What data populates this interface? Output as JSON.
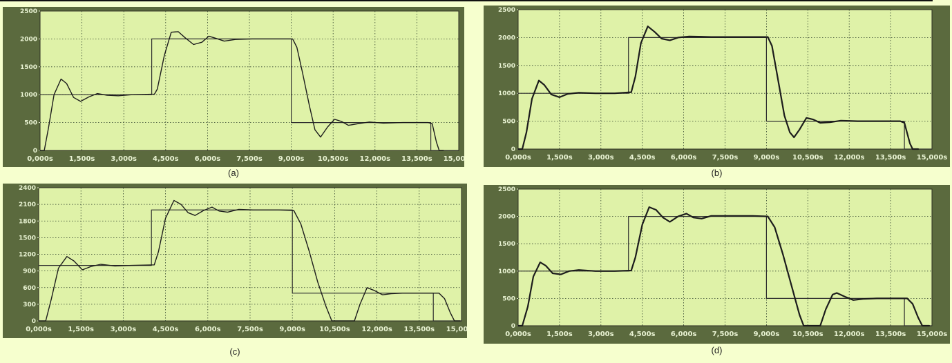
{
  "chart_data": [
    {
      "caption": "(a)",
      "type": "line",
      "ylim": [
        0,
        2500
      ],
      "yticks": [
        0,
        500,
        1000,
        1500,
        2000,
        2500
      ],
      "ytick_labels": [
        "0",
        "500",
        "1000",
        "1500",
        "2000",
        "2500"
      ],
      "xlim": [
        0,
        15
      ],
      "xticks": [
        0,
        1.5,
        3,
        4.5,
        6,
        7.5,
        9,
        10.5,
        12,
        13.5,
        15
      ],
      "xtick_labels": [
        "0,000s",
        "1,500s",
        "3,000s",
        "4,500s",
        "6,000s",
        "7,500s",
        "9,000s",
        "10,500s",
        "12,000s",
        "13,500s",
        "15,000s"
      ],
      "grid": true,
      "series": [
        {
          "points": [
            [
              0,
              1000
            ],
            [
              4,
              1000
            ],
            [
              4,
              2000
            ],
            [
              9,
              2000
            ],
            [
              9,
              500
            ],
            [
              14,
              500
            ],
            [
              14,
              0
            ],
            [
              15,
              0
            ]
          ]
        },
        {
          "points": [
            [
              0,
              0
            ],
            [
              0.15,
              0
            ],
            [
              0.3,
              400
            ],
            [
              0.5,
              1000
            ],
            [
              0.75,
              1280
            ],
            [
              0.95,
              1200
            ],
            [
              1.2,
              950
            ],
            [
              1.45,
              880
            ],
            [
              1.75,
              960
            ],
            [
              2.05,
              1020
            ],
            [
              2.4,
              990
            ],
            [
              2.8,
              980
            ],
            [
              3.3,
              1000
            ],
            [
              4.1,
              1010
            ],
            [
              4.2,
              1100
            ],
            [
              4.45,
              1700
            ],
            [
              4.7,
              2120
            ],
            [
              4.95,
              2130
            ],
            [
              5.2,
              2020
            ],
            [
              5.5,
              1900
            ],
            [
              5.8,
              1940
            ],
            [
              6.05,
              2050
            ],
            [
              6.3,
              2010
            ],
            [
              6.6,
              1960
            ],
            [
              7,
              1990
            ],
            [
              7.6,
              2000
            ],
            [
              8.5,
              2000
            ],
            [
              9.05,
              2000
            ],
            [
              9.2,
              1850
            ],
            [
              9.4,
              1400
            ],
            [
              9.65,
              800
            ],
            [
              9.85,
              370
            ],
            [
              10.05,
              240
            ],
            [
              10.3,
              420
            ],
            [
              10.55,
              560
            ],
            [
              10.8,
              520
            ],
            [
              11.05,
              450
            ],
            [
              11.4,
              480
            ],
            [
              11.8,
              510
            ],
            [
              12.3,
              490
            ],
            [
              13,
              500
            ],
            [
              13.9,
              500
            ],
            [
              14.05,
              480
            ],
            [
              14.2,
              150
            ],
            [
              14.3,
              0
            ],
            [
              14.45,
              0
            ]
          ]
        }
      ]
    },
    {
      "caption": "(b)",
      "type": "line",
      "ylim": [
        0,
        2500
      ],
      "yticks": [
        0,
        500,
        1000,
        1500,
        2000,
        2500
      ],
      "ytick_labels": [
        "0",
        "500",
        "1000",
        "1500",
        "2000",
        "2500"
      ],
      "xlim": [
        0,
        15
      ],
      "xticks": [
        0,
        1.5,
        3,
        4.5,
        6,
        7.5,
        9,
        10.5,
        12,
        13.5,
        15
      ],
      "xtick_labels": [
        "0,000s",
        "1,500s",
        "3,000s",
        "4,500s",
        "6,000s",
        "7,500s",
        "9,000s",
        "10,500s",
        "12,000s",
        "13,500s",
        "15,000s"
      ],
      "grid": true,
      "series": [
        {
          "points": [
            [
              0,
              1000
            ],
            [
              4,
              1000
            ],
            [
              4,
              2000
            ],
            [
              9,
              2000
            ],
            [
              9,
              500
            ],
            [
              14,
              500
            ],
            [
              14,
              0
            ],
            [
              15,
              0
            ]
          ]
        },
        {
          "points": [
            [
              0,
              0
            ],
            [
              0.15,
              0
            ],
            [
              0.3,
              300
            ],
            [
              0.5,
              900
            ],
            [
              0.75,
              1230
            ],
            [
              0.95,
              1150
            ],
            [
              1.2,
              980
            ],
            [
              1.5,
              930
            ],
            [
              1.8,
              990
            ],
            [
              2.2,
              1010
            ],
            [
              2.8,
              1000
            ],
            [
              3.5,
              1000
            ],
            [
              4.1,
              1020
            ],
            [
              4.25,
              1300
            ],
            [
              4.45,
              1900
            ],
            [
              4.7,
              2200
            ],
            [
              4.95,
              2100
            ],
            [
              5.2,
              1980
            ],
            [
              5.5,
              1950
            ],
            [
              5.8,
              2000
            ],
            [
              6.2,
              2020
            ],
            [
              7,
              2010
            ],
            [
              8,
              2010
            ],
            [
              9.05,
              2010
            ],
            [
              9.2,
              1850
            ],
            [
              9.4,
              1300
            ],
            [
              9.65,
              600
            ],
            [
              9.85,
              300
            ],
            [
              10,
              210
            ],
            [
              10.2,
              350
            ],
            [
              10.45,
              560
            ],
            [
              10.7,
              530
            ],
            [
              10.95,
              470
            ],
            [
              11.3,
              480
            ],
            [
              11.7,
              510
            ],
            [
              12.3,
              500
            ],
            [
              13,
              500
            ],
            [
              13.85,
              500
            ],
            [
              14,
              470
            ],
            [
              14.2,
              100
            ],
            [
              14.3,
              0
            ],
            [
              14.5,
              0
            ]
          ]
        }
      ]
    },
    {
      "caption": "(c)",
      "type": "line",
      "ylim": [
        0,
        2400
      ],
      "yticks": [
        0,
        300,
        600,
        900,
        1200,
        1500,
        1800,
        2100,
        2400
      ],
      "ytick_labels": [
        "0",
        "300",
        "600",
        "900",
        "1200",
        "1500",
        "1800",
        "2100",
        "2400"
      ],
      "xlim": [
        0,
        15
      ],
      "xticks": [
        0,
        1.5,
        3,
        4.5,
        6,
        7.5,
        9,
        10.5,
        12,
        13.5,
        15
      ],
      "xtick_labels": [
        "0,000s",
        "1,500s",
        "3,000s",
        "4,500s",
        "6,000s",
        "7,500s",
        "9,000s",
        "10,500s",
        "12,000s",
        "13,500s",
        "15,000s"
      ],
      "grid": true,
      "series": [
        {
          "points": [
            [
              0,
              1000
            ],
            [
              4,
              1000
            ],
            [
              4,
              2000
            ],
            [
              9,
              2000
            ],
            [
              9,
              500
            ],
            [
              14,
              500
            ],
            [
              14,
              0
            ],
            [
              15,
              0
            ]
          ]
        },
        {
          "points": [
            [
              0,
              0
            ],
            [
              0.25,
              0
            ],
            [
              0.45,
              400
            ],
            [
              0.7,
              950
            ],
            [
              1,
              1160
            ],
            [
              1.25,
              1080
            ],
            [
              1.55,
              920
            ],
            [
              1.85,
              980
            ],
            [
              2.2,
              1020
            ],
            [
              2.7,
              990
            ],
            [
              3.3,
              1000
            ],
            [
              4.1,
              1010
            ],
            [
              4.25,
              1250
            ],
            [
              4.5,
              1850
            ],
            [
              4.8,
              2170
            ],
            [
              5.05,
              2100
            ],
            [
              5.3,
              1950
            ],
            [
              5.55,
              1900
            ],
            [
              5.85,
              1990
            ],
            [
              6.15,
              2050
            ],
            [
              6.4,
              1980
            ],
            [
              6.7,
              1960
            ],
            [
              7.1,
              2010
            ],
            [
              7.6,
              2000
            ],
            [
              8.5,
              2000
            ],
            [
              9.05,
              1990
            ],
            [
              9.3,
              1750
            ],
            [
              9.6,
              1250
            ],
            [
              9.9,
              700
            ],
            [
              10.2,
              250
            ],
            [
              10.4,
              0
            ],
            [
              10.7,
              0
            ],
            [
              11.2,
              0
            ],
            [
              11.4,
              300
            ],
            [
              11.65,
              600
            ],
            [
              11.9,
              550
            ],
            [
              12.2,
              470
            ],
            [
              12.5,
              490
            ],
            [
              12.9,
              500
            ],
            [
              13.5,
              500
            ],
            [
              14.2,
              500
            ],
            [
              14.4,
              400
            ],
            [
              14.6,
              150
            ],
            [
              14.75,
              0
            ],
            [
              14.95,
              0
            ]
          ]
        }
      ]
    },
    {
      "caption": "(d)",
      "type": "line",
      "ylim": [
        0,
        2500
      ],
      "yticks": [
        0,
        500,
        1000,
        1500,
        2000,
        2500
      ],
      "ytick_labels": [
        "0",
        "500",
        "1000",
        "1500",
        "2000",
        "2500"
      ],
      "xlim": [
        0,
        15
      ],
      "xticks": [
        0,
        1.5,
        3,
        4.5,
        6,
        7.5,
        9,
        10.5,
        12,
        13.5,
        15
      ],
      "xtick_labels": [
        "0,000s",
        "1,500s",
        "3,000s",
        "4,500s",
        "6,000s",
        "7,500s",
        "9,000s",
        "10,500s",
        "12,000s",
        "13,500s",
        "15,000s"
      ],
      "grid": true,
      "series": [
        {
          "points": [
            [
              0,
              1000
            ],
            [
              4,
              1000
            ],
            [
              4,
              2000
            ],
            [
              9,
              2000
            ],
            [
              9,
              500
            ],
            [
              14,
              500
            ],
            [
              14,
              0
            ],
            [
              15,
              0
            ]
          ]
        },
        {
          "points": [
            [
              0,
              0
            ],
            [
              0.15,
              0
            ],
            [
              0.35,
              350
            ],
            [
              0.55,
              900
            ],
            [
              0.8,
              1160
            ],
            [
              1,
              1100
            ],
            [
              1.25,
              960
            ],
            [
              1.55,
              940
            ],
            [
              1.85,
              1000
            ],
            [
              2.2,
              1020
            ],
            [
              2.8,
              1000
            ],
            [
              3.5,
              1000
            ],
            [
              4.1,
              1010
            ],
            [
              4.25,
              1250
            ],
            [
              4.5,
              1850
            ],
            [
              4.75,
              2170
            ],
            [
              5,
              2120
            ],
            [
              5.25,
              1980
            ],
            [
              5.5,
              1900
            ],
            [
              5.8,
              2000
            ],
            [
              6.1,
              2050
            ],
            [
              6.35,
              1980
            ],
            [
              6.65,
              1960
            ],
            [
              7,
              2010
            ],
            [
              7.6,
              2010
            ],
            [
              8.5,
              2010
            ],
            [
              9.05,
              2000
            ],
            [
              9.3,
              1800
            ],
            [
              9.6,
              1300
            ],
            [
              9.9,
              750
            ],
            [
              10.2,
              200
            ],
            [
              10.35,
              0
            ],
            [
              10.65,
              0
            ],
            [
              10.95,
              0
            ],
            [
              11.15,
              300
            ],
            [
              11.4,
              570
            ],
            [
              11.55,
              600
            ],
            [
              11.85,
              530
            ],
            [
              12.15,
              470
            ],
            [
              12.5,
              490
            ],
            [
              13,
              500
            ],
            [
              13.6,
              500
            ],
            [
              14.1,
              500
            ],
            [
              14.3,
              400
            ],
            [
              14.5,
              150
            ],
            [
              14.65,
              0
            ],
            [
              14.9,
              0
            ]
          ]
        }
      ]
    }
  ]
}
